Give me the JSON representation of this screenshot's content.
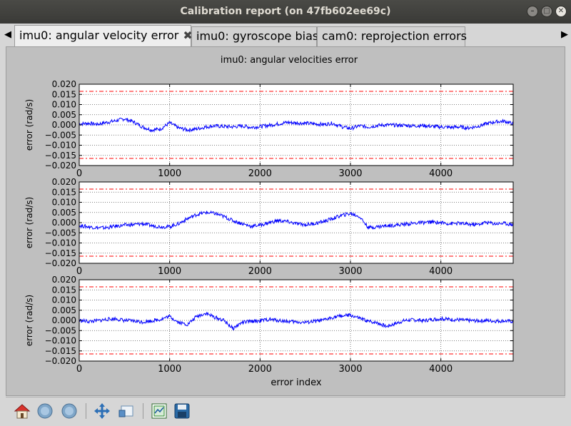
{
  "window": {
    "title": "Calibration report (on 47fb602ee69c)"
  },
  "tabs": [
    {
      "label": "imu0: angular velocity error",
      "active": true
    },
    {
      "label": "imu0: gyroscope bias",
      "active": false
    },
    {
      "label": "cam0: reprojection errors",
      "active": false
    }
  ],
  "toolbar": {
    "items": [
      {
        "name": "home-icon"
      },
      {
        "name": "back-icon"
      },
      {
        "name": "forward-icon"
      },
      {
        "name": "pan-icon"
      },
      {
        "name": "zoom-icon"
      },
      {
        "name": "subplots-icon"
      },
      {
        "name": "save-icon"
      }
    ]
  },
  "chart_data": {
    "type": "line",
    "title": "imu0: angular velocities error",
    "xlabel": "error index",
    "xlim": [
      0,
      4800
    ],
    "xticks": [
      0,
      1000,
      2000,
      3000,
      4000
    ],
    "grid": true,
    "colors": {
      "line": "#0000ff",
      "limit": "#ff0000"
    },
    "subplots": [
      {
        "ylabel": "error (rad/s)",
        "ylim": [
          -0.02,
          0.02
        ],
        "yticks": [
          0.02,
          0.015,
          0.01,
          0.005,
          0.0,
          -0.005,
          -0.01,
          -0.015,
          -0.02
        ],
        "limits": [
          0.0165,
          -0.0165
        ],
        "x": [
          0,
          100,
          200,
          300,
          400,
          500,
          600,
          700,
          800,
          900,
          1000,
          1100,
          1200,
          1300,
          1400,
          1500,
          1600,
          1700,
          1800,
          1900,
          2000,
          2100,
          2200,
          2300,
          2400,
          2500,
          2600,
          2700,
          2800,
          2900,
          3000,
          3100,
          3200,
          3300,
          3400,
          3500,
          3600,
          3700,
          3800,
          3900,
          4000,
          4100,
          4200,
          4300,
          4400,
          4500,
          4600,
          4700,
          4800
        ],
        "y": [
          0.0005,
          0.0008,
          0.0003,
          0.0012,
          0.002,
          0.003,
          0.0015,
          -0.001,
          -0.0025,
          -0.002,
          0.001,
          -0.0015,
          -0.0025,
          -0.002,
          -0.001,
          -0.0005,
          -0.0008,
          -0.001,
          -0.0005,
          -0.0012,
          -0.0008,
          -0.0002,
          0.0005,
          0.0012,
          0.001,
          0.0008,
          0.0005,
          0.0002,
          0.0008,
          -0.0008,
          -0.0018,
          -0.0005,
          -0.001,
          -0.0003,
          0.0,
          -0.0002,
          -0.0002,
          -0.0005,
          -0.0003,
          -0.0008,
          -0.001,
          -0.0012,
          -0.001,
          -0.0015,
          -0.0008,
          0.0005,
          0.0015,
          0.0018,
          0.0005
        ]
      },
      {
        "ylabel": "error (rad/s)",
        "ylim": [
          -0.02,
          0.02
        ],
        "yticks": [
          0.02,
          0.015,
          0.01,
          0.005,
          0.0,
          -0.005,
          -0.01,
          -0.015,
          -0.02
        ],
        "limits": [
          0.0165,
          -0.0165
        ],
        "x": [
          0,
          100,
          200,
          300,
          400,
          500,
          600,
          700,
          800,
          900,
          1000,
          1100,
          1200,
          1300,
          1400,
          1500,
          1600,
          1700,
          1800,
          1900,
          2000,
          2100,
          2200,
          2300,
          2400,
          2500,
          2600,
          2700,
          2800,
          2900,
          3000,
          3100,
          3200,
          3300,
          3400,
          3500,
          3600,
          3700,
          3800,
          3900,
          4000,
          4100,
          4200,
          4300,
          4400,
          4500,
          4600,
          4700,
          4800
        ],
        "y": [
          -0.0015,
          -0.002,
          -0.0025,
          -0.0025,
          -0.0018,
          -0.0012,
          -0.001,
          -0.0005,
          -0.0015,
          -0.002,
          -0.002,
          -0.0005,
          0.002,
          0.004,
          0.005,
          0.0045,
          0.003,
          0.001,
          -0.0005,
          -0.0018,
          -0.0012,
          0.0,
          0.001,
          0.0005,
          -0.0005,
          -0.001,
          -0.0005,
          0.0005,
          0.002,
          0.0035,
          0.0045,
          0.003,
          -0.0025,
          -0.002,
          -0.0015,
          -0.0012,
          -0.0008,
          -0.0003,
          0.0,
          0.0003,
          0.0,
          -0.0005,
          -0.0003,
          -0.0008,
          -0.001,
          0.0002,
          -0.0005,
          -0.0003,
          -0.001
        ]
      },
      {
        "ylabel": "error (rad/s)",
        "ylim": [
          -0.02,
          0.02
        ],
        "yticks": [
          0.02,
          0.015,
          0.01,
          0.005,
          0.0,
          -0.005,
          -0.01,
          -0.015,
          -0.02
        ],
        "limits": [
          0.0165,
          -0.0165
        ],
        "x": [
          0,
          100,
          200,
          300,
          400,
          500,
          600,
          700,
          800,
          900,
          1000,
          1100,
          1200,
          1300,
          1400,
          1500,
          1600,
          1700,
          1800,
          1900,
          2000,
          2100,
          2200,
          2300,
          2400,
          2500,
          2600,
          2700,
          2800,
          2900,
          3000,
          3100,
          3200,
          3300,
          3400,
          3500,
          3600,
          3700,
          3800,
          3900,
          4000,
          4100,
          4200,
          4300,
          4400,
          4500,
          4600,
          4700,
          4800
        ],
        "y": [
          0.0,
          -0.0005,
          -0.0002,
          0.0005,
          0.0008,
          0.0,
          -0.0003,
          -0.0008,
          -0.0002,
          0.0005,
          0.002,
          -0.001,
          -0.002,
          0.002,
          0.0035,
          0.0015,
          0.0,
          -0.004,
          -0.001,
          -0.0005,
          -0.0002,
          0.0005,
          0.0,
          -0.0005,
          -0.0008,
          -0.001,
          -0.0005,
          0.0,
          0.0015,
          0.0022,
          0.0025,
          0.001,
          -0.0005,
          -0.0012,
          -0.003,
          -0.0015,
          0.0,
          0.0003,
          -0.0002,
          0.0005,
          0.0008,
          0.0005,
          0.0003,
          0.0,
          -0.0002,
          0.0,
          -0.0003,
          -0.0002,
          -0.0005
        ]
      }
    ]
  }
}
